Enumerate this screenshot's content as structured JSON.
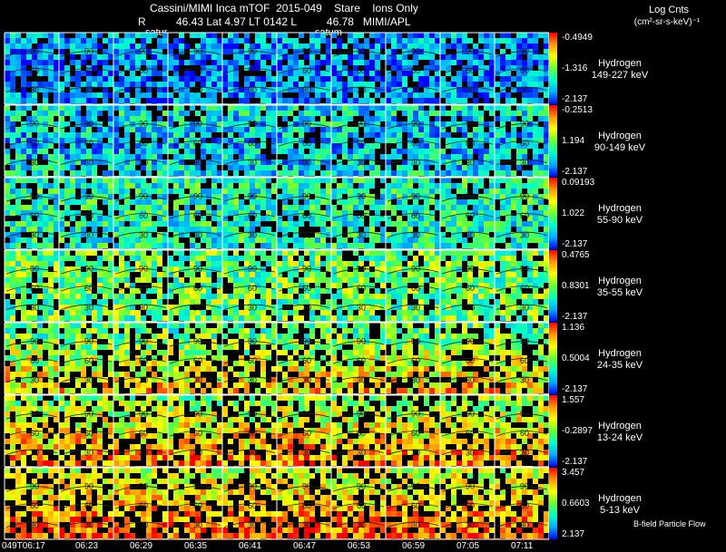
{
  "header": {
    "title": "Cassini/MIMI Inca mTOF  2015-049    Stare    Ions Only",
    "subtitle": "R          46.43 Lat 4.97 LT 0142 L          46.78   MIMI/APL",
    "satur_label_1": "satur",
    "satur_label_2": "satum"
  },
  "legend": {
    "title": "Log Cnts",
    "units": "(cm²-sr-s-keV)⁻¹"
  },
  "rows": [
    {
      "species": "Hydrogen",
      "energy": "149-227 keV",
      "max": "-0.4949",
      "mid": "-1.316",
      "min": "-2.137",
      "bias": -0.15,
      "spread": 0.18
    },
    {
      "species": "Hydrogen",
      "energy": "90-149 keV",
      "max": "-0.2513",
      "mid": "1.194",
      "min": "-2.137",
      "bias": -0.05,
      "spread": 0.2
    },
    {
      "species": "Hydrogen",
      "energy": "55-90 keV",
      "max": "0.09193",
      "mid": "1.022",
      "min": "-2.137",
      "bias": 0.0,
      "spread": 0.2
    },
    {
      "species": "Hydrogen",
      "energy": "35-55 keV",
      "max": "0.4765",
      "mid": "0.8301",
      "min": "-2.137",
      "bias": 0.12,
      "spread": 0.22
    },
    {
      "species": "Hydrogen",
      "energy": "24-35 keV",
      "max": "1.136",
      "mid": "0.5004",
      "min": "-2.137",
      "bias": 0.25,
      "spread": 0.22
    },
    {
      "species": "Hydrogen",
      "energy": "13-24 keV",
      "max": "1.557",
      "mid": "-0.2897",
      "min": "-2.137",
      "bias": 0.35,
      "spread": 0.2
    },
    {
      "species": "Hydrogen",
      "energy": "5-13 keV",
      "max": "3.457",
      "mid": "0.6603",
      "min": "2.137",
      "bias": 0.42,
      "spread": 0.18
    }
  ],
  "time_labels": [
    "049T06:17",
    "06:23",
    "06:29",
    "06:35",
    "06:41",
    "06:47",
    "06:53",
    "06:59",
    "07:05",
    "07:11"
  ],
  "contour_labels": [
    "90",
    "60",
    "30"
  ],
  "footer_note": "B-field Particle Flow",
  "colors": {
    "background": "#000000",
    "gridline": "#ffffff",
    "colorbar": [
      "#0000ff",
      "#00aaff",
      "#00ffcc",
      "#66ff33",
      "#ffff00",
      "#ff9900",
      "#ff0000"
    ]
  }
}
